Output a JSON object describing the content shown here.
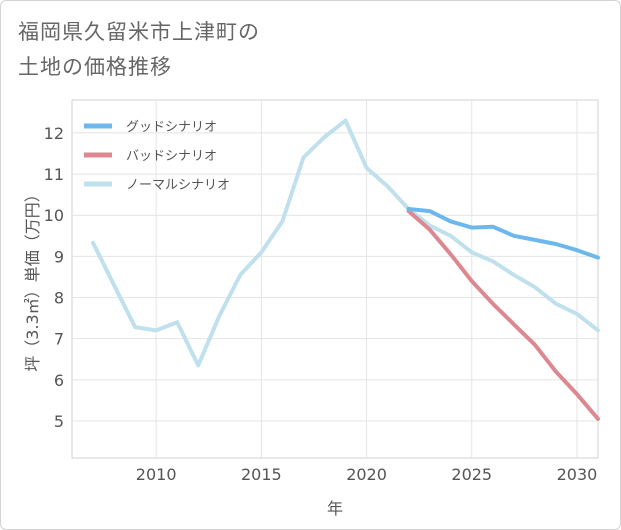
{
  "title_lines": [
    "福岡県久留米市上津町の",
    "土地の価格推移"
  ],
  "chart_data": {
    "type": "line",
    "title": "福岡県久留米市上津町の土地の価格推移",
    "xlabel": "年",
    "ylabel": "坪（3.3㎡）単価（万円）",
    "xlim": [
      2006,
      2031
    ],
    "ylim": [
      4.1,
      12.8
    ],
    "xticks": [
      2010,
      2015,
      2020,
      2025,
      2030
    ],
    "yticks": [
      5,
      6,
      7,
      8,
      9,
      10,
      11,
      12
    ],
    "grid": true,
    "legend_position": "top-left",
    "series": [
      {
        "name": "グッドシナリオ",
        "color": "#6cb8ec",
        "x": [
          2022,
          2023,
          2024,
          2025,
          2026,
          2027,
          2028,
          2029,
          2030,
          2031
        ],
        "values": [
          10.15,
          10.1,
          9.85,
          9.7,
          9.72,
          9.5,
          9.4,
          9.3,
          9.15,
          8.97
        ]
      },
      {
        "name": "バッドシナリオ",
        "color": "#dc8891",
        "x": [
          2022,
          2023,
          2024,
          2025,
          2026,
          2027,
          2028,
          2029,
          2030,
          2031
        ],
        "values": [
          10.1,
          9.65,
          9.05,
          8.4,
          7.85,
          7.35,
          6.85,
          6.2,
          5.65,
          5.05
        ]
      },
      {
        "name": "ノーマルシナリオ",
        "color": "#bfe0ec",
        "x": [
          2007,
          2008,
          2009,
          2010,
          2011,
          2012,
          2013,
          2014,
          2015,
          2016,
          2017,
          2018,
          2019,
          2020,
          2021,
          2022,
          2023,
          2024,
          2025,
          2026,
          2027,
          2028,
          2029,
          2030,
          2031
        ],
        "values": [
          9.33,
          8.3,
          7.28,
          7.2,
          7.4,
          6.35,
          7.55,
          8.55,
          9.1,
          9.85,
          11.4,
          11.9,
          12.3,
          11.15,
          10.7,
          10.15,
          9.75,
          9.5,
          9.1,
          8.88,
          8.55,
          8.25,
          7.85,
          7.6,
          7.2
        ]
      }
    ]
  }
}
